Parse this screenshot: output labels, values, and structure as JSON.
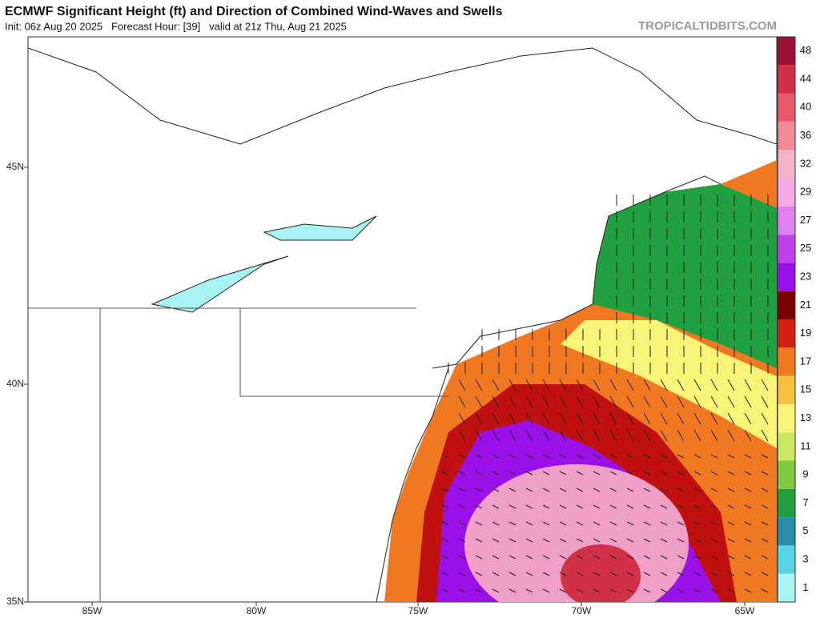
{
  "header": {
    "title": "ECMWF Significant Height (ft) and Direction of Combined Wind-Waves and Swells",
    "subtitle": "Init: 06z Aug 20 2025   Forecast Hour: [39]   valid at 21z Thu, Aug 21 2025",
    "watermark": "TROPICALTIDBITS.COM"
  },
  "map": {
    "lon_labels": [
      "85W",
      "80W",
      "75W",
      "70W",
      "65W"
    ],
    "lat_labels": [
      "45N",
      "40N",
      "35N"
    ]
  },
  "colorbar": {
    "labels": [
      1,
      3,
      5,
      7,
      9,
      11,
      13,
      15,
      17,
      19,
      21,
      23,
      25,
      27,
      29,
      32,
      36,
      40,
      44,
      48
    ],
    "colors": [
      "#a8f4f4",
      "#58d4e4",
      "#2a8ca8",
      "#1fa03c",
      "#80c840",
      "#c8e864",
      "#f8f478",
      "#f8c040",
      "#f07820",
      "#d42010",
      "#7a0000",
      "#9a10e8",
      "#c040f0",
      "#e080f0",
      "#f4a8e4",
      "#f4b4c8",
      "#f08898",
      "#e85868",
      "#d03048",
      "#a01034"
    ]
  }
}
